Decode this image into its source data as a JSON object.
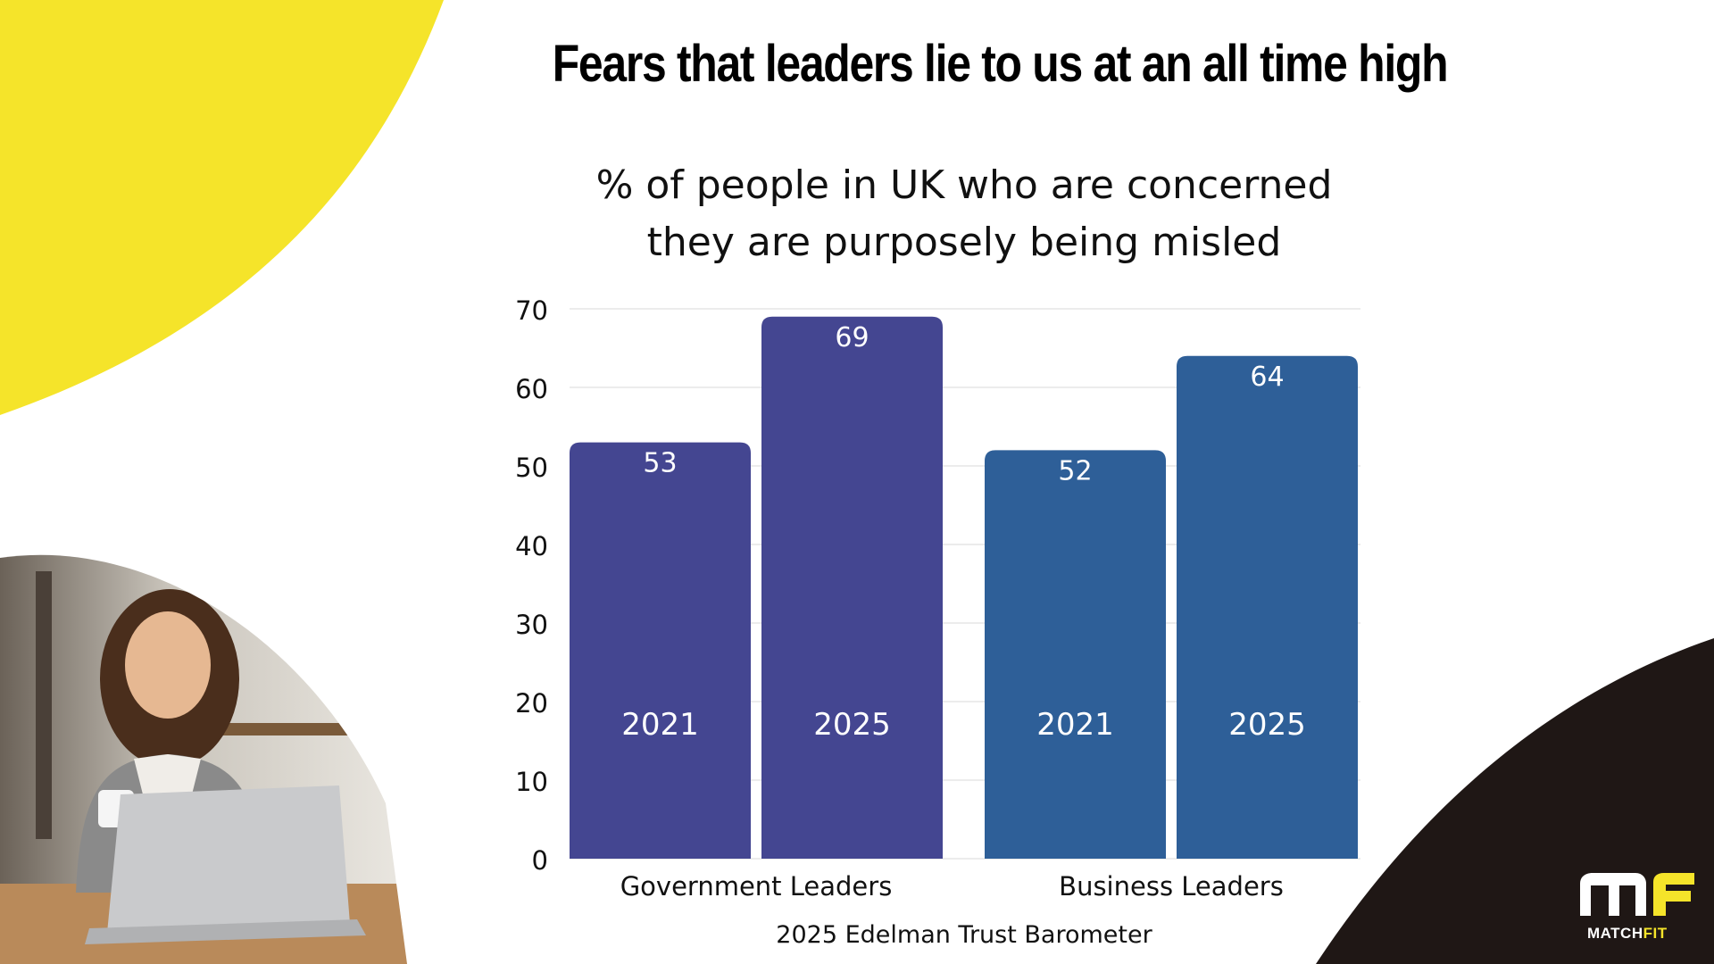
{
  "title": "Fears that leaders lie to us at an all time high",
  "subtitle_line1": "% of people in UK who are concerned",
  "subtitle_line2": "they are purposely being misled",
  "source": "2025 Edelman Trust Barometer",
  "logo": {
    "text_main": "MATCH",
    "text_accent": "FIT",
    "icon": "mf-logo-icon"
  },
  "colors": {
    "yellow": "#f5e42a",
    "dark": "#1f1715",
    "government_bar": "#444691",
    "business_bar": "#2e5f98",
    "grid": "#e6e6e6"
  },
  "chart_data": {
    "type": "bar",
    "title": "% of people in UK who are concerned they are purposely being misled",
    "ylim": [
      0,
      70
    ],
    "yticks": [
      0,
      10,
      20,
      30,
      40,
      50,
      60,
      70
    ],
    "grid": true,
    "groups": [
      {
        "name": "Government Leaders",
        "color": "#444691",
        "bars": [
          {
            "year": "2021",
            "value": 53
          },
          {
            "year": "2025",
            "value": 69
          }
        ]
      },
      {
        "name": "Business Leaders",
        "color": "#2e5f98",
        "bars": [
          {
            "year": "2021",
            "value": 52
          },
          {
            "year": "2025",
            "value": 64
          }
        ]
      }
    ]
  }
}
